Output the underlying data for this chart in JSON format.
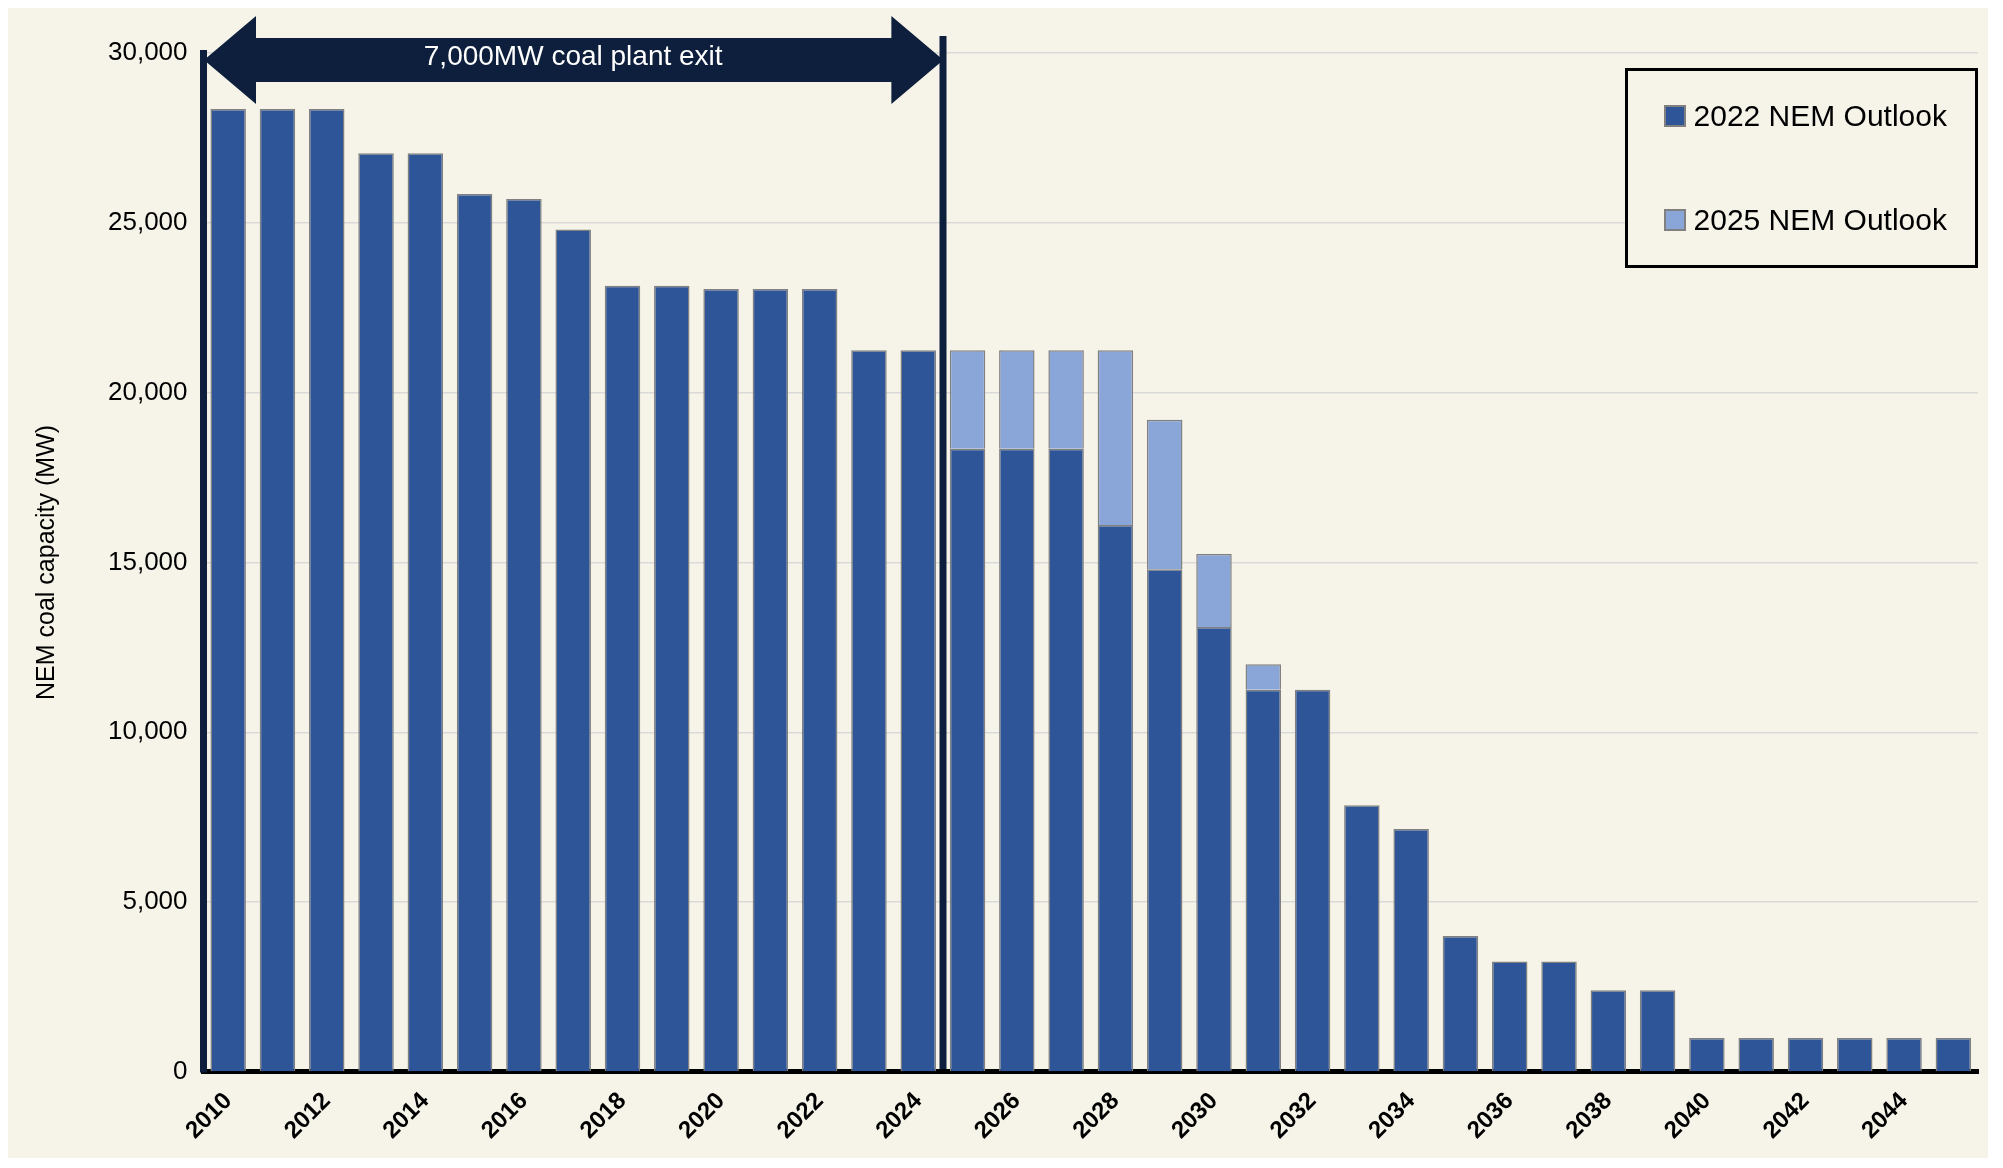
{
  "chart_data": {
    "type": "bar",
    "stacked": true,
    "categories": [
      "2010",
      null,
      "2012",
      null,
      "2014",
      null,
      "2016",
      null,
      "2018",
      null,
      "2020",
      null,
      "2022",
      null,
      "2024",
      null,
      "2026",
      null,
      "2028",
      null,
      "2030",
      null,
      "2032",
      null,
      "2034",
      null,
      "2036",
      null,
      "2038",
      null,
      "2040",
      null,
      "2042",
      null,
      "2044",
      null
    ],
    "series": [
      {
        "name": "2022 NEM Outlook",
        "color": "#2e5597",
        "values": [
          28350,
          28350,
          28350,
          27050,
          27050,
          25850,
          25700,
          24800,
          23150,
          23150,
          23050,
          23050,
          23050,
          21250,
          21250,
          18350,
          18350,
          18350,
          16100,
          14800,
          13100,
          11250,
          11250,
          7850,
          7150,
          4000,
          3250,
          3250,
          2400,
          2400,
          1000,
          1000,
          1000,
          1000,
          1000,
          1000
        ]
      },
      {
        "name": "2025 NEM Outlook",
        "color": "#8aa6d8",
        "values": [
          null,
          null,
          null,
          null,
          null,
          null,
          null,
          null,
          null,
          null,
          null,
          null,
          null,
          null,
          null,
          2900,
          2900,
          2900,
          5150,
          4400,
          2150,
          750,
          null,
          null,
          null,
          null,
          null,
          null,
          null,
          null,
          null,
          null,
          null,
          null,
          null,
          null
        ]
      }
    ],
    "ylabel": "NEM coal capacity (MW)",
    "ylim": [
      0,
      30000
    ],
    "yticks": [
      0,
      {
        "value": 5000,
        "label": "5,000"
      },
      {
        "value": 10000,
        "label": "10,000"
      },
      {
        "value": 15000,
        "label": "15,000"
      },
      {
        "value": 20000,
        "label": "20,000"
      },
      {
        "value": 25000,
        "label": "25,000"
      },
      {
        "value": 30000,
        "label": "30,000"
      }
    ],
    "grid": "y",
    "legend": "top right",
    "annotations": [
      "7,000MW coal plant exit"
    ]
  }
}
